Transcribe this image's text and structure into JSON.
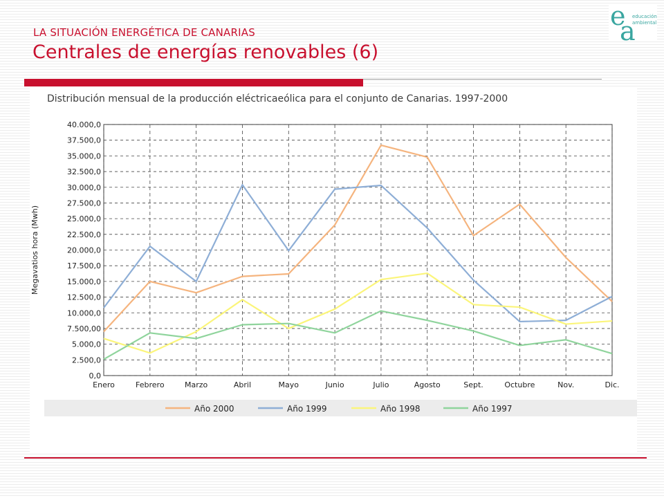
{
  "slide": {
    "supertitle": "LA SITUACIÓN ENERGÉTICA DE CANARIAS",
    "title": "Centrales de energías renovables (6)",
    "accent_color": "#c8102e"
  },
  "logo": {
    "letter_top": "e",
    "letter_bottom": "a",
    "line1": "educación",
    "line2": "ambiental",
    "color": "#3aa6a0"
  },
  "chart_data": {
    "type": "line",
    "title": "Distribución mensual de la producción eléctricaeólica para el conjunto de Canarias. 1997-2000",
    "xlabel": "",
    "ylabel": "Megavatios hora (Mwh)",
    "ylim": [
      0,
      40000
    ],
    "grid": true,
    "legend_position": "bottom",
    "categories": [
      "Enero",
      "Febrero",
      "Marzo",
      "Abril",
      "Mayo",
      "Junio",
      "Julio",
      "Agosto",
      "Sept.",
      "Octubre",
      "Nov.",
      "Dic."
    ],
    "y_tick_labels": [
      "0,0",
      "2.500,0",
      "5.000,0",
      "7.500,00",
      "10.000,0",
      "12.500,0",
      "15.000,0",
      "17.500,0",
      "20.000,0",
      "22.500,0",
      "25.000,0",
      "27.500,0",
      "30.000,0",
      "32.500,0",
      "35.000,0",
      "37.500,0",
      "40.000,0"
    ],
    "series": [
      {
        "name": "Año 2000",
        "color": "#f5b47e",
        "values": [
          7000,
          15000,
          13200,
          15800,
          16200,
          24000,
          36700,
          34800,
          22300,
          27300,
          18800,
          11800
        ]
      },
      {
        "name": "Año 1999",
        "color": "#8eaed6",
        "values": [
          10800,
          20600,
          15000,
          30400,
          19900,
          29700,
          30300,
          23500,
          15200,
          8600,
          8800,
          12600
        ]
      },
      {
        "name": "Año 1998",
        "color": "#fbf57a",
        "values": [
          5900,
          3600,
          7000,
          12100,
          7500,
          10600,
          15300,
          16300,
          11300,
          10900,
          8200,
          8700
        ]
      },
      {
        "name": "Año 1997",
        "color": "#8fd49c",
        "values": [
          2600,
          6800,
          5900,
          8100,
          8300,
          6800,
          10300,
          8800,
          7100,
          4800,
          5700,
          3500
        ]
      }
    ]
  }
}
